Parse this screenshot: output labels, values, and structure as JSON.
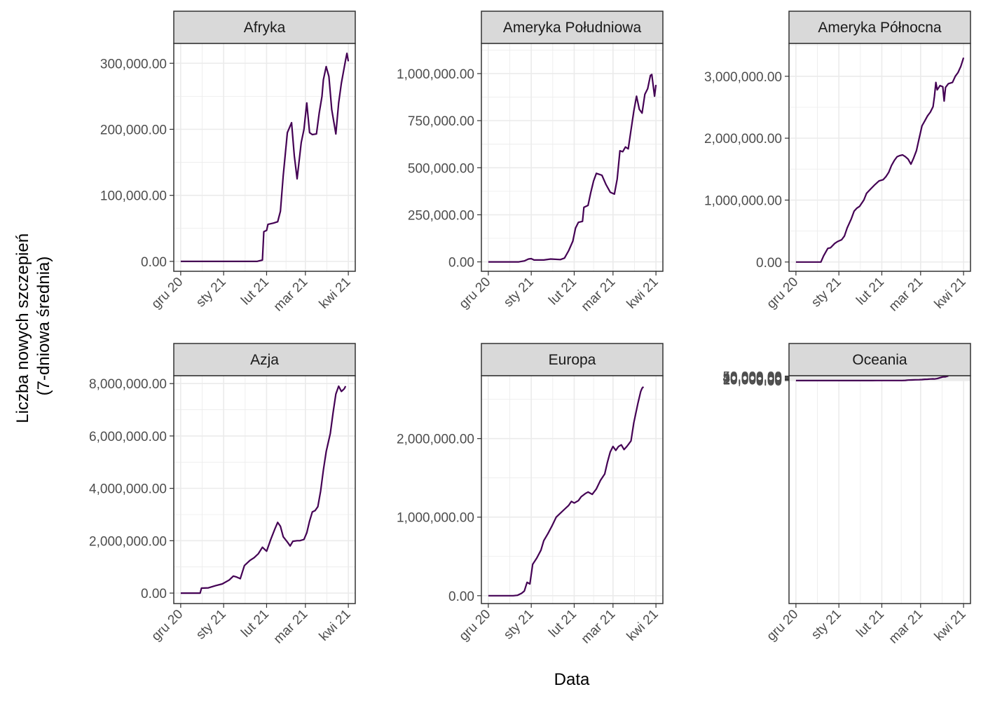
{
  "chart_data": {
    "type": "line",
    "xlabel": "Data",
    "ylabel_lines": [
      "Liczba nowych szczepień",
      "(7-dniowa średnia)"
    ],
    "x_unit": "day",
    "x_ticks": [
      {
        "label": "gru 20",
        "day": 0
      },
      {
        "label": "sty 21",
        "day": 31
      },
      {
        "label": "lut 21",
        "day": 62
      },
      {
        "label": "mar 21",
        "day": 90
      },
      {
        "label": "kwi 21",
        "day": 121
      }
    ],
    "grid": true,
    "colors": {
      "line": "#440154",
      "strip": "#d9d9d9",
      "grid": "#ebebeb",
      "border": "#333333"
    },
    "panels": [
      {
        "title": "Afryka",
        "ylim": [
          -15000,
          330000
        ],
        "yticks": [
          {
            "label": "0.00",
            "value": 0
          },
          {
            "label": "100,000.00",
            "value": 100000
          },
          {
            "label": "200,000.00",
            "value": 200000
          },
          {
            "label": "300,000.00",
            "value": 300000
          }
        ],
        "points": [
          [
            0,
            0
          ],
          [
            55,
            0
          ],
          [
            59,
            2000
          ],
          [
            60,
            45000
          ],
          [
            62,
            47000
          ],
          [
            63,
            56000
          ],
          [
            67,
            58000
          ],
          [
            70,
            60000
          ],
          [
            72,
            76000
          ],
          [
            74,
            130000
          ],
          [
            77,
            195000
          ],
          [
            80,
            210000
          ],
          [
            82,
            160000
          ],
          [
            84,
            125000
          ],
          [
            87,
            180000
          ],
          [
            89,
            200000
          ],
          [
            91,
            240000
          ],
          [
            93,
            195000
          ],
          [
            95,
            192000
          ],
          [
            98,
            193000
          ],
          [
            100,
            225000
          ],
          [
            102,
            250000
          ],
          [
            103,
            275000
          ],
          [
            105,
            295000
          ],
          [
            107,
            280000
          ],
          [
            109,
            230000
          ],
          [
            112,
            193000
          ],
          [
            114,
            240000
          ],
          [
            116,
            270000
          ],
          [
            119,
            305000
          ],
          [
            120,
            315000
          ],
          [
            121,
            303000
          ]
        ]
      },
      {
        "title": "Ameryka Południowa",
        "ylim": [
          -50000,
          1160000
        ],
        "yticks": [
          {
            "label": "0.00",
            "value": 0
          },
          {
            "label": "250,000.00",
            "value": 250000
          },
          {
            "label": "500,000.00",
            "value": 500000
          },
          {
            "label": "750,000.00",
            "value": 750000
          },
          {
            "label": "1,000,000.00",
            "value": 1000000
          }
        ],
        "points": [
          [
            0,
            0
          ],
          [
            22,
            0
          ],
          [
            26,
            5000
          ],
          [
            29,
            15000
          ],
          [
            31,
            17000
          ],
          [
            33,
            10000
          ],
          [
            40,
            10000
          ],
          [
            45,
            15000
          ],
          [
            52,
            12000
          ],
          [
            55,
            20000
          ],
          [
            58,
            60000
          ],
          [
            61,
            110000
          ],
          [
            63,
            180000
          ],
          [
            65,
            210000
          ],
          [
            68,
            215000
          ],
          [
            69,
            290000
          ],
          [
            72,
            300000
          ],
          [
            74,
            370000
          ],
          [
            76,
            430000
          ],
          [
            78,
            470000
          ],
          [
            80,
            465000
          ],
          [
            82,
            460000
          ],
          [
            85,
            410000
          ],
          [
            88,
            370000
          ],
          [
            91,
            360000
          ],
          [
            93,
            440000
          ],
          [
            95,
            590000
          ],
          [
            97,
            585000
          ],
          [
            99,
            610000
          ],
          [
            101,
            600000
          ],
          [
            103,
            700000
          ],
          [
            105,
            800000
          ],
          [
            107,
            880000
          ],
          [
            109,
            810000
          ],
          [
            111,
            790000
          ],
          [
            113,
            890000
          ],
          [
            115,
            920000
          ],
          [
            117,
            990000
          ],
          [
            118,
            995000
          ],
          [
            120,
            880000
          ],
          [
            121,
            940000
          ]
        ]
      },
      {
        "title": "Ameryka Północna",
        "ylim": [
          -150000,
          3530000
        ],
        "yticks": [
          {
            "label": "0.00",
            "value": 0
          },
          {
            "label": "1,000,000.00",
            "value": 1000000
          },
          {
            "label": "2,000,000.00",
            "value": 2000000
          },
          {
            "label": "3,000,000.00",
            "value": 3000000
          }
        ],
        "points": [
          [
            0,
            0
          ],
          [
            18,
            0
          ],
          [
            20,
            100000
          ],
          [
            23,
            220000
          ],
          [
            25,
            230000
          ],
          [
            28,
            300000
          ],
          [
            30,
            330000
          ],
          [
            33,
            360000
          ],
          [
            35,
            420000
          ],
          [
            37,
            550000
          ],
          [
            40,
            700000
          ],
          [
            42,
            820000
          ],
          [
            44,
            870000
          ],
          [
            46,
            900000
          ],
          [
            49,
            1000000
          ],
          [
            51,
            1110000
          ],
          [
            54,
            1180000
          ],
          [
            57,
            1250000
          ],
          [
            60,
            1310000
          ],
          [
            63,
            1330000
          ],
          [
            65,
            1380000
          ],
          [
            67,
            1450000
          ],
          [
            69,
            1560000
          ],
          [
            71,
            1640000
          ],
          [
            73,
            1700000
          ],
          [
            75,
            1720000
          ],
          [
            77,
            1730000
          ],
          [
            79,
            1700000
          ],
          [
            81,
            1660000
          ],
          [
            83,
            1580000
          ],
          [
            85,
            1680000
          ],
          [
            87,
            1800000
          ],
          [
            89,
            2000000
          ],
          [
            91,
            2200000
          ],
          [
            93,
            2280000
          ],
          [
            95,
            2360000
          ],
          [
            97,
            2420000
          ],
          [
            99,
            2510000
          ],
          [
            100,
            2680000
          ],
          [
            101,
            2900000
          ],
          [
            102,
            2780000
          ],
          [
            104,
            2850000
          ],
          [
            106,
            2830000
          ],
          [
            107,
            2600000
          ],
          [
            108,
            2820000
          ],
          [
            110,
            2880000
          ],
          [
            113,
            2900000
          ],
          [
            115,
            3000000
          ],
          [
            117,
            3060000
          ],
          [
            119,
            3160000
          ],
          [
            121,
            3300000
          ]
        ]
      },
      {
        "title": "Azja",
        "ylim": [
          -400000,
          8300000
        ],
        "yticks": [
          {
            "label": "0.00",
            "value": 0
          },
          {
            "label": "2,000,000.00",
            "value": 2000000
          },
          {
            "label": "4,000,000.00",
            "value": 4000000
          },
          {
            "label": "6,000,000.00",
            "value": 6000000
          },
          {
            "label": "8,000,000.00",
            "value": 8000000
          }
        ],
        "points": [
          [
            0,
            0
          ],
          [
            14,
            0
          ],
          [
            15,
            190000
          ],
          [
            20,
            200000
          ],
          [
            25,
            280000
          ],
          [
            30,
            350000
          ],
          [
            35,
            500000
          ],
          [
            38,
            650000
          ],
          [
            40,
            620000
          ],
          [
            43,
            550000
          ],
          [
            46,
            1050000
          ],
          [
            50,
            1250000
          ],
          [
            53,
            1350000
          ],
          [
            56,
            1500000
          ],
          [
            59,
            1750000
          ],
          [
            62,
            1600000
          ],
          [
            65,
            2050000
          ],
          [
            68,
            2450000
          ],
          [
            70,
            2700000
          ],
          [
            72,
            2550000
          ],
          [
            74,
            2150000
          ],
          [
            77,
            1950000
          ],
          [
            79,
            1800000
          ],
          [
            81,
            1980000
          ],
          [
            84,
            2000000
          ],
          [
            86,
            2000000
          ],
          [
            89,
            2050000
          ],
          [
            91,
            2300000
          ],
          [
            93,
            2750000
          ],
          [
            95,
            3100000
          ],
          [
            97,
            3150000
          ],
          [
            99,
            3300000
          ],
          [
            101,
            3900000
          ],
          [
            103,
            4700000
          ],
          [
            105,
            5400000
          ],
          [
            108,
            6100000
          ],
          [
            110,
            6900000
          ],
          [
            112,
            7600000
          ],
          [
            114,
            7900000
          ],
          [
            116,
            7700000
          ],
          [
            118,
            7800000
          ],
          [
            119,
            7900000
          ]
        ]
      },
      {
        "title": "Europa",
        "ylim": [
          -100000,
          2800000
        ],
        "yticks": [
          {
            "label": "0.00",
            "value": 0
          },
          {
            "label": "1,000,000.00",
            "value": 1000000
          },
          {
            "label": "2,000,000.00",
            "value": 2000000
          }
        ],
        "points": [
          [
            0,
            0
          ],
          [
            18,
            0
          ],
          [
            21,
            5000
          ],
          [
            24,
            30000
          ],
          [
            26,
            60000
          ],
          [
            28,
            170000
          ],
          [
            30,
            150000
          ],
          [
            32,
            400000
          ],
          [
            35,
            480000
          ],
          [
            38,
            580000
          ],
          [
            40,
            700000
          ],
          [
            43,
            790000
          ],
          [
            46,
            890000
          ],
          [
            49,
            1000000
          ],
          [
            52,
            1050000
          ],
          [
            55,
            1100000
          ],
          [
            58,
            1150000
          ],
          [
            60,
            1200000
          ],
          [
            62,
            1180000
          ],
          [
            65,
            1210000
          ],
          [
            67,
            1260000
          ],
          [
            70,
            1300000
          ],
          [
            72,
            1320000
          ],
          [
            75,
            1290000
          ],
          [
            78,
            1360000
          ],
          [
            81,
            1470000
          ],
          [
            84,
            1550000
          ],
          [
            86,
            1700000
          ],
          [
            88,
            1830000
          ],
          [
            90,
            1900000
          ],
          [
            92,
            1850000
          ],
          [
            94,
            1900000
          ],
          [
            96,
            1920000
          ],
          [
            98,
            1860000
          ],
          [
            100,
            1900000
          ],
          [
            103,
            1970000
          ],
          [
            105,
            2200000
          ],
          [
            108,
            2450000
          ],
          [
            110,
            2600000
          ],
          [
            111,
            2640000
          ],
          [
            112,
            2660000
          ]
        ]
      },
      {
        "title": "Oceania",
        "ylim": [
          -2500000,
          54000
        ],
        "yticks": [
          {
            "label": "0.00",
            "value": 0
          },
          {
            "label": "10,000.00",
            "value": 10000
          },
          {
            "label": "20,000.00",
            "value": 20000
          },
          {
            "label": "30,000.00",
            "value": 30000
          },
          {
            "label": "40,000.00",
            "value": 40000
          },
          {
            "label": "50,000.00",
            "value": 50000
          }
        ],
        "points": [
          [
            0,
            0
          ],
          [
            55,
            0
          ],
          [
            58,
            300
          ],
          [
            63,
            300
          ],
          [
            68,
            400
          ],
          [
            73,
            600
          ],
          [
            77,
            800
          ],
          [
            79,
            2000
          ],
          [
            81,
            5000
          ],
          [
            84,
            7000
          ],
          [
            86,
            8500
          ],
          [
            89,
            9500
          ],
          [
            91,
            10500
          ],
          [
            93,
            14000
          ],
          [
            95,
            14500
          ],
          [
            97,
            17000
          ],
          [
            99,
            18500
          ],
          [
            100,
            17000
          ],
          [
            102,
            22000
          ],
          [
            104,
            32000
          ],
          [
            106,
            41000
          ],
          [
            108,
            42000
          ],
          [
            110,
            51500
          ]
        ]
      }
    ]
  }
}
